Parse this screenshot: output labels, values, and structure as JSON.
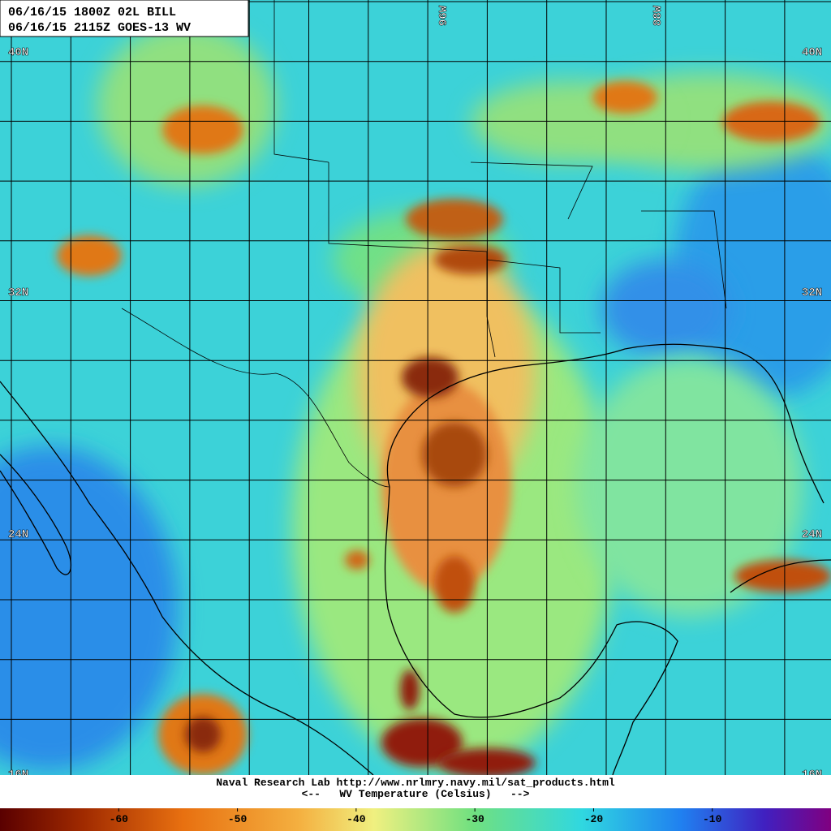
{
  "header": {
    "lines": [
      "06/16/15 1800Z  02L BILL",
      "06/16/15 2115Z  GOES-13 WV"
    ]
  },
  "grid_labels": {
    "latitudes": [
      "40N",
      "32N",
      "24N",
      "16N"
    ],
    "longitudes": [
      "96W",
      "88W"
    ]
  },
  "footer": {
    "credit": "Naval Research Lab http://www.nrlmry.navy.mil/sat_products.html",
    "scale_title": "<--   WV Temperature (Celsius)   -->"
  },
  "colorbar": {
    "range": [
      -70,
      0
    ],
    "ticks": [
      -60,
      -50,
      -40,
      -30,
      -20,
      -10
    ]
  }
}
